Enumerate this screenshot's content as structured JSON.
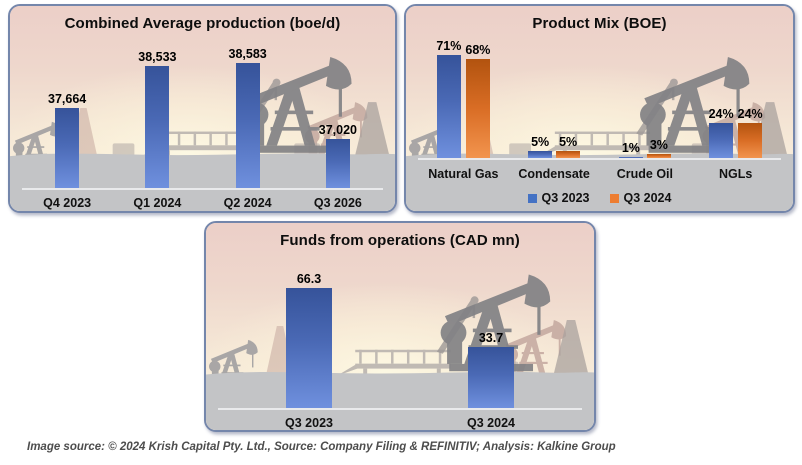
{
  "page": {
    "background": "#ffffff"
  },
  "colors": {
    "bar_blue": "#4472c4",
    "bar_orange": "#ed7d31",
    "panel_border": "#7486ab",
    "ground_gray": "#c3c4c6",
    "sky_pink": "#eccfc8",
    "sky_glow": "#fdf9e4"
  },
  "chart_data": [
    {
      "id": "production",
      "type": "bar",
      "title": "Combined Average production (boe/d)",
      "categories": [
        "Q4 2023",
        "Q1 2024",
        "Q2 2024",
        "Q3 2026"
      ],
      "values": [
        37664,
        38533,
        38583,
        37020
      ],
      "data_labels": [
        "37,664",
        "38,533",
        "38,583",
        "37,020"
      ],
      "bar_color": "blue",
      "xlabel": "",
      "ylabel": "",
      "ylim": [
        36000,
        39000
      ],
      "grid": false,
      "legend": null
    },
    {
      "id": "product_mix",
      "type": "bar",
      "title": "Product Mix (BOE)",
      "categories": [
        "Natural Gas",
        "Condensate",
        "Crude Oil",
        "NGLs"
      ],
      "series": [
        {
          "name": "Q3 2023",
          "color": "blue",
          "values": [
            71,
            5,
            1,
            24
          ],
          "data_labels": [
            "71%",
            "5%",
            "1%",
            "24%"
          ]
        },
        {
          "name": "Q3 2024",
          "color": "orange",
          "values": [
            68,
            5,
            3,
            24
          ],
          "data_labels": [
            "68%",
            "5%",
            "3%",
            "24%"
          ]
        }
      ],
      "xlabel": "",
      "ylabel": "",
      "ylim": [
        0,
        100
      ],
      "grid": false,
      "legend_position": "bottom"
    },
    {
      "id": "ffo",
      "type": "bar",
      "title": "Funds from operations (CAD mn)",
      "categories": [
        "Q3 2023",
        "Q3 2024"
      ],
      "values": [
        66.3,
        33.7
      ],
      "data_labels": [
        "66.3",
        "33.7"
      ],
      "bar_color": "blue",
      "xlabel": "",
      "ylabel": "",
      "ylim": [
        0,
        80
      ],
      "grid": false,
      "legend": null
    }
  ],
  "footer": {
    "text": "Image source: © 2024 Krish Capital Pty. Ltd., Source: Company Filing & REFINITIV; Analysis: Kalkine Group"
  }
}
